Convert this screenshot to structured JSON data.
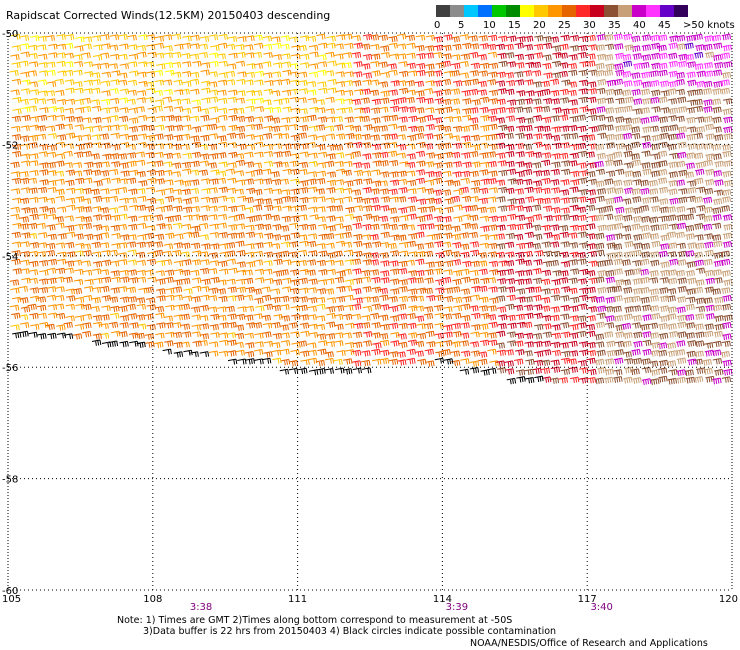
{
  "title": "Rapidscat Corrected Winds(12.5KM) 20150403 descending",
  "colorbar": {
    "colors": [
      "#404040",
      "#8c8c8c",
      "#00c8ff",
      "#0070ff",
      "#00c800",
      "#008c00",
      "#ffff00",
      "#ffc800",
      "#ff9600",
      "#e66400",
      "#ff2828",
      "#c8001e",
      "#8c5032",
      "#c8a078",
      "#c800c8",
      "#ff32ff",
      "#6400c8",
      "#32005a"
    ],
    "labels": [
      "0",
      "5",
      "10",
      "15",
      "20",
      "25",
      "30",
      "35",
      "40",
      "45",
      ">50 knots"
    ]
  },
  "axes": {
    "lon_ticks": [
      "105",
      "108",
      "111",
      "114",
      "117",
      "120"
    ],
    "lat_ticks": [
      "-50",
      "-52",
      "-54",
      "-56",
      "-58",
      "-60"
    ]
  },
  "chart_data": {
    "type": "scatter",
    "x_range": [
      105,
      120
    ],
    "y_range": [
      -60,
      -50
    ],
    "x_ticks": [
      105,
      108,
      111,
      114,
      117,
      120
    ],
    "y_ticks": [
      -50,
      -52,
      -54,
      -56,
      -58,
      -60
    ],
    "grid": true,
    "swath_edge_lat": [
      {
        "lon": 105.0,
        "lat": -55.4
      },
      {
        "lon": 108.0,
        "lat": -55.7
      },
      {
        "lon": 111.0,
        "lat": -56.1
      },
      {
        "lon": 114.0,
        "lat": -56.0
      },
      {
        "lon": 117.0,
        "lat": -56.5
      },
      {
        "lon": 120.0,
        "lat": -56.5
      }
    ],
    "wind_regions": [
      {
        "lon_range": [
          105,
          112
        ],
        "lat_range": [
          -51.5,
          -50
        ],
        "knots": 22
      },
      {
        "lon_range": [
          105,
          112
        ],
        "lat_range": [
          -56,
          -51.5
        ],
        "knots": 25
      },
      {
        "lon_range": [
          112,
          115
        ],
        "lat_range": [
          -56,
          -50
        ],
        "knots": 27
      },
      {
        "lon_range": [
          115,
          117
        ],
        "lat_range": [
          -56.5,
          -50
        ],
        "knots": 32
      },
      {
        "lon_range": [
          117,
          120
        ],
        "lat_range": [
          -56.5,
          -50
        ],
        "knots": 37
      },
      {
        "lon_range": [
          117.5,
          120
        ],
        "lat_range": [
          -51,
          -50
        ],
        "knots": 42
      }
    ],
    "time_labels": [
      {
        "text": "3:38",
        "lon": 109.0
      },
      {
        "text": "3:39",
        "lon": 114.3
      },
      {
        "text": "3:40",
        "lon": 117.3
      }
    ]
  },
  "notes": {
    "line1": "Note: 1) Times are GMT 2)Times along bottom correspond to measurement at -50S",
    "line2": "3)Data buffer is 22 hrs from 20150403 4) Black circles indicate possible contamination"
  },
  "credit": "NOAA/NESDIS/Office of Research and Applications"
}
